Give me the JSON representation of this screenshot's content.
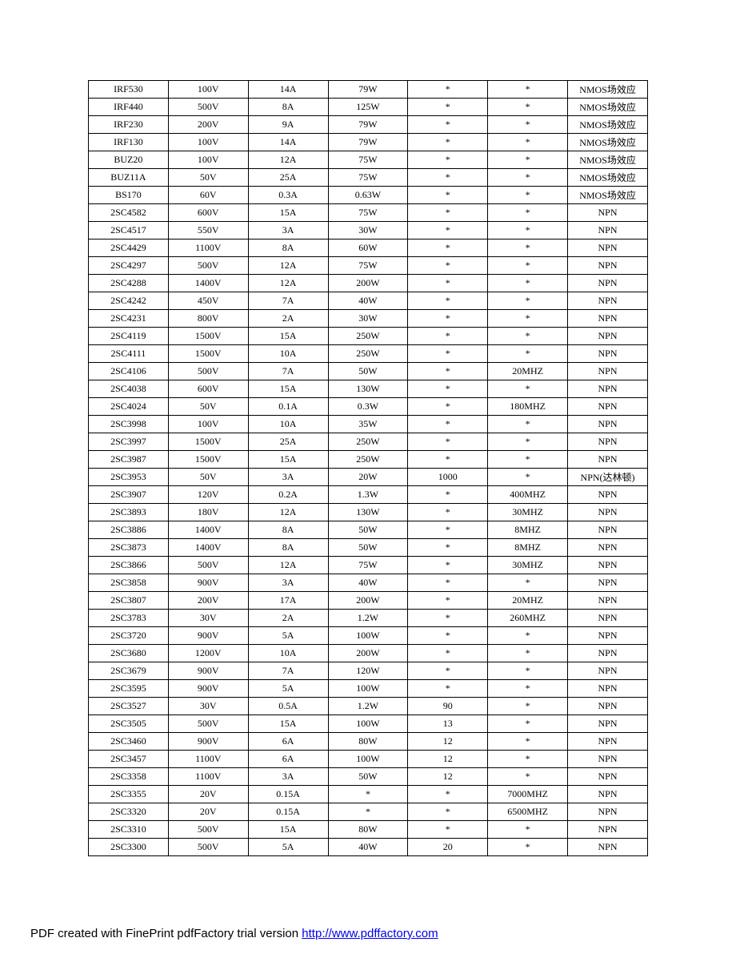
{
  "table": {
    "column_widths": [
      "14.3%",
      "14.3%",
      "14.3%",
      "14.3%",
      "14.3%",
      "14.3%",
      "14.3%"
    ],
    "border_color": "#000000",
    "background_color": "#ffffff",
    "font_size": 12,
    "rows": [
      [
        "IRF530",
        "100V",
        "14A",
        "79W",
        "*",
        "*",
        "NMOS场效应"
      ],
      [
        "IRF440",
        "500V",
        "8A",
        "125W",
        "*",
        "*",
        "NMOS场效应"
      ],
      [
        "IRF230",
        "200V",
        "9A",
        "79W",
        "*",
        "*",
        "NMOS场效应"
      ],
      [
        "IRF130",
        "100V",
        "14A",
        "79W",
        "*",
        "*",
        "NMOS场效应"
      ],
      [
        "BUZ20",
        "100V",
        "12A",
        "75W",
        "*",
        "*",
        "NMOS场效应"
      ],
      [
        "BUZ11A",
        "50V",
        "25A",
        "75W",
        "*",
        "*",
        "NMOS场效应"
      ],
      [
        "BS170",
        "60V",
        "0.3A",
        "0.63W",
        "*",
        "*",
        "NMOS场效应"
      ],
      [
        "2SC4582",
        "600V",
        "15A",
        "75W",
        "*",
        "*",
        "NPN"
      ],
      [
        "2SC4517",
        "550V",
        "3A",
        "30W",
        "*",
        "*",
        "NPN"
      ],
      [
        "2SC4429",
        "1100V",
        "8A",
        "60W",
        "*",
        "*",
        "NPN"
      ],
      [
        "2SC4297",
        "500V",
        "12A",
        "75W",
        "*",
        "*",
        "NPN"
      ],
      [
        "2SC4288",
        "1400V",
        "12A",
        "200W",
        "*",
        "*",
        "NPN"
      ],
      [
        "2SC4242",
        "450V",
        "7A",
        "40W",
        "*",
        "*",
        "NPN"
      ],
      [
        "2SC4231",
        "800V",
        "2A",
        "30W",
        "*",
        "*",
        "NPN"
      ],
      [
        "2SC4119",
        "1500V",
        "15A",
        "250W",
        "*",
        "*",
        "NPN"
      ],
      [
        "2SC4111",
        "1500V",
        "10A",
        "250W",
        "*",
        "*",
        "NPN"
      ],
      [
        "2SC4106",
        "500V",
        "7A",
        "50W",
        "*",
        "20MHZ",
        "NPN"
      ],
      [
        "2SC4038",
        "600V",
        "15A",
        "130W",
        "*",
        "*",
        "NPN"
      ],
      [
        "2SC4024",
        "50V",
        "0.1A",
        "0.3W",
        "*",
        "180MHZ",
        "NPN"
      ],
      [
        "2SC3998",
        "100V",
        "10A",
        "35W",
        "*",
        "*",
        "NPN"
      ],
      [
        "2SC3997",
        "1500V",
        "25A",
        "250W",
        "*",
        "*",
        "NPN"
      ],
      [
        "2SC3987",
        "1500V",
        "15A",
        "250W",
        "*",
        "*",
        "NPN"
      ],
      [
        "2SC3953",
        "50V",
        "3A",
        "20W",
        "1000",
        "*",
        "NPN(达林顿)"
      ],
      [
        "2SC3907",
        "120V",
        "0.2A",
        "1.3W",
        "*",
        "400MHZ",
        "NPN"
      ],
      [
        "2SC3893",
        "180V",
        "12A",
        "130W",
        "*",
        "30MHZ",
        "NPN"
      ],
      [
        "2SC3886",
        "1400V",
        "8A",
        "50W",
        "*",
        "8MHZ",
        "NPN"
      ],
      [
        "2SC3873",
        "1400V",
        "8A",
        "50W",
        "*",
        "8MHZ",
        "NPN"
      ],
      [
        "2SC3866",
        "500V",
        "12A",
        "75W",
        "*",
        "30MHZ",
        "NPN"
      ],
      [
        "2SC3858",
        "900V",
        "3A",
        "40W",
        "*",
        "*",
        "NPN"
      ],
      [
        "2SC3807",
        "200V",
        "17A",
        "200W",
        "*",
        "20MHZ",
        "NPN"
      ],
      [
        "2SC3783",
        "30V",
        "2A",
        "1.2W",
        "*",
        "260MHZ",
        "NPN"
      ],
      [
        "2SC3720",
        "900V",
        "5A",
        "100W",
        "*",
        "*",
        "NPN"
      ],
      [
        "2SC3680",
        "1200V",
        "10A",
        "200W",
        "*",
        "*",
        "NPN"
      ],
      [
        "2SC3679",
        "900V",
        "7A",
        "120W",
        "*",
        "*",
        "NPN"
      ],
      [
        "2SC3595",
        "900V",
        "5A",
        "100W",
        "*",
        "*",
        "NPN"
      ],
      [
        "2SC3527",
        "30V",
        "0.5A",
        "1.2W",
        "90",
        "*",
        "NPN"
      ],
      [
        "2SC3505",
        "500V",
        "15A",
        "100W",
        "13",
        "*",
        "NPN"
      ],
      [
        "2SC3460",
        "900V",
        "6A",
        "80W",
        "12",
        "*",
        "NPN"
      ],
      [
        "2SC3457",
        "1100V",
        "6A",
        "100W",
        "12",
        "*",
        "NPN"
      ],
      [
        "2SC3358",
        "1100V",
        "3A",
        "50W",
        "12",
        "*",
        "NPN"
      ],
      [
        "2SC3355",
        "20V",
        "0.15A",
        "*",
        "*",
        "7000MHZ",
        "NPN"
      ],
      [
        "2SC3320",
        "20V",
        "0.15A",
        "*",
        "*",
        "6500MHZ",
        "NPN"
      ],
      [
        "2SC3310",
        "500V",
        "15A",
        "80W",
        "*",
        "*",
        "NPN"
      ],
      [
        "2SC3300",
        "500V",
        "5A",
        "40W",
        "20",
        "*",
        "NPN"
      ]
    ]
  },
  "footer": {
    "text_before": "PDF created with FinePrint pdfFactory trial version ",
    "link_text": "http://www.pdffactory.com",
    "link_color": "#0000ee"
  }
}
